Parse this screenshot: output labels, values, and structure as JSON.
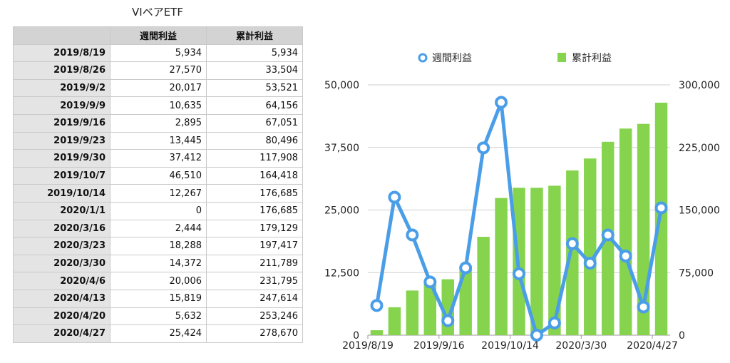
{
  "table": {
    "title": "VIベアETF",
    "headers": [
      "",
      "週間利益",
      "累計利益"
    ],
    "rows": [
      [
        "2019/8/19",
        "5,934",
        "5,934"
      ],
      [
        "2019/8/26",
        "27,570",
        "33,504"
      ],
      [
        "2019/9/2",
        "20,017",
        "53,521"
      ],
      [
        "2019/9/9",
        "10,635",
        "64,156"
      ],
      [
        "2019/9/16",
        "2,895",
        "67,051"
      ],
      [
        "2019/9/23",
        "13,445",
        "80,496"
      ],
      [
        "2019/9/30",
        "37,412",
        "117,908"
      ],
      [
        "2019/10/7",
        "46,510",
        "164,418"
      ],
      [
        "2019/10/14",
        "12,267",
        "176,685"
      ],
      [
        "2020/1/1",
        "0",
        "176,685"
      ],
      [
        "2020/3/16",
        "2,444",
        "179,129"
      ],
      [
        "2020/3/23",
        "18,288",
        "197,417"
      ],
      [
        "2020/3/30",
        "14,372",
        "211,789"
      ],
      [
        "2020/4/6",
        "20,006",
        "231,795"
      ],
      [
        "2020/4/13",
        "15,819",
        "247,614"
      ],
      [
        "2020/4/20",
        "5,632",
        "253,246"
      ],
      [
        "2020/4/27",
        "25,424",
        "278,670"
      ]
    ]
  },
  "chart_data": {
    "type": "bar",
    "categories": [
      "2019/8/19",
      "2019/8/26",
      "2019/9/2",
      "2019/9/9",
      "2019/9/16",
      "2019/9/23",
      "2019/9/30",
      "2019/10/7",
      "2019/10/14",
      "2020/1/1",
      "2020/3/16",
      "2020/3/23",
      "2020/3/30",
      "2020/4/6",
      "2020/4/13",
      "2020/4/20",
      "2020/4/27"
    ],
    "x_tick_labels": [
      "2019/8/19",
      "2019/9/16",
      "2019/10/14",
      "2020/3/30",
      "2020/4/27"
    ],
    "x_tick_every": 4,
    "series": [
      {
        "name": "週間利益",
        "kind": "line",
        "axis": "left",
        "color": "#4a9ee8",
        "values": [
          5934,
          27570,
          20017,
          10635,
          2895,
          13445,
          37412,
          46510,
          12267,
          0,
          2444,
          18288,
          14372,
          20006,
          15819,
          5632,
          25424
        ]
      },
      {
        "name": "累計利益",
        "kind": "bar",
        "axis": "right",
        "color": "#86d44e",
        "values": [
          5934,
          33504,
          53521,
          64156,
          67051,
          80496,
          117908,
          164418,
          176685,
          176685,
          179129,
          197417,
          211789,
          231795,
          247614,
          253246,
          278670
        ]
      }
    ],
    "ylim_left": [
      0,
      50000
    ],
    "ylim_right": [
      0,
      300000
    ],
    "yticks_left": [
      "0",
      "12,500",
      "25,000",
      "37,500",
      "50,000"
    ],
    "yticks_right": [
      "0",
      "75,000",
      "150,000",
      "225,000",
      "300,000"
    ],
    "legend_position": "top",
    "grid": true
  }
}
